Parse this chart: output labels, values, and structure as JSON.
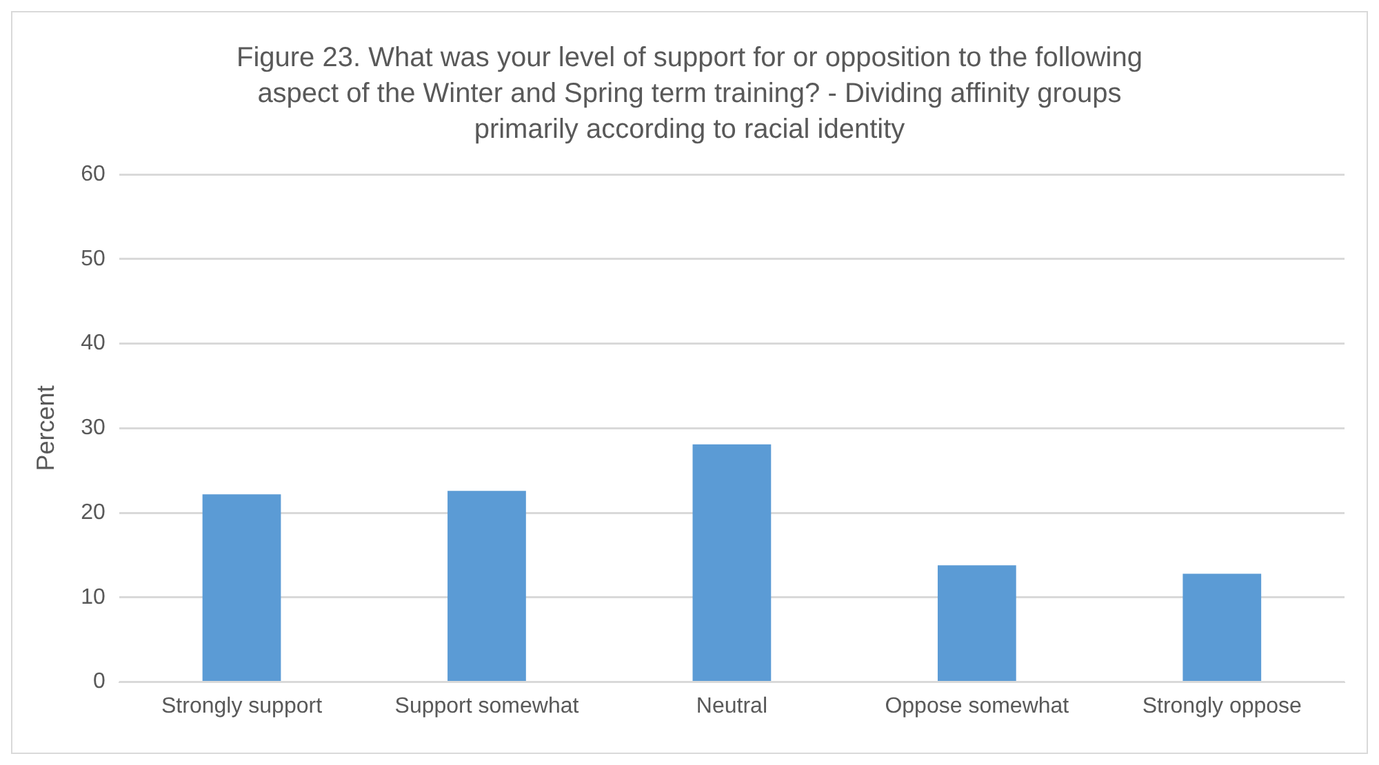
{
  "chart_data": {
    "type": "bar",
    "title": "Figure 23. What was your level of support for or opposition to the following aspect of the Winter and Spring term training? - Dividing affinity groups primarily according to racial identity",
    "ylabel": "Percent",
    "categories": [
      "Strongly support",
      "Support somewhat",
      "Neutral",
      "Oppose somewhat",
      "Strongly oppose"
    ],
    "values": [
      22.2,
      22.6,
      28.1,
      13.8,
      12.8
    ],
    "color": "#5b9bd5",
    "ylim": [
      0,
      60
    ],
    "yticks": [
      0,
      10,
      20,
      30,
      40,
      50,
      60
    ],
    "grid": "y"
  }
}
